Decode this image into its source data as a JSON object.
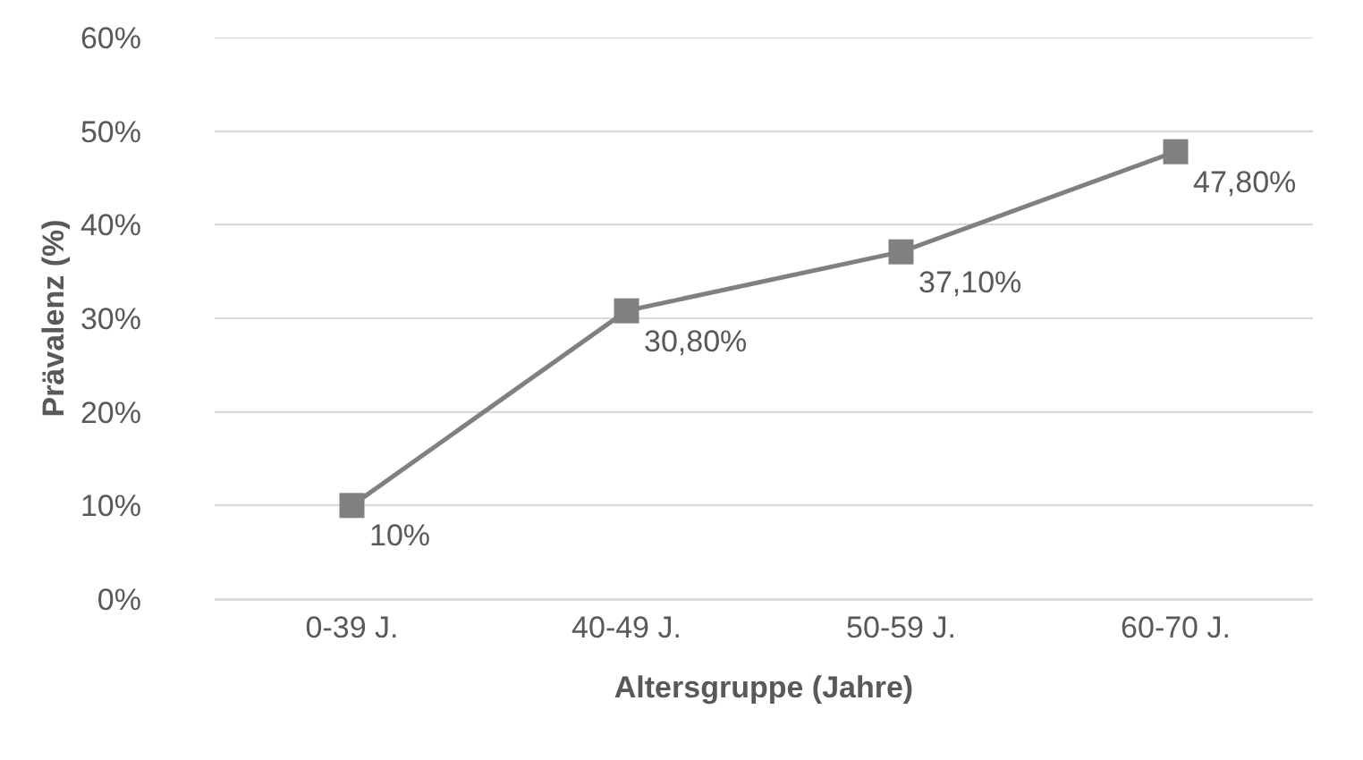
{
  "chart_data": {
    "type": "line",
    "xlabel": "Altersgruppe (Jahre)",
    "ylabel": "Prävalenz (%)",
    "categories": [
      "0-39 J.",
      "40-49 J.",
      "50-59 J.",
      "60-70 J."
    ],
    "series": [
      {
        "color": "#808080",
        "values": [
          10,
          30.8,
          37.1,
          47.8
        ],
        "value_labels": [
          "10%",
          "30,80%",
          "37,10%",
          "47,80%"
        ]
      }
    ],
    "ylim": [
      0,
      60
    ],
    "yticks": [
      {
        "value": 0,
        "label": "0%"
      },
      {
        "value": 10,
        "label": "10%"
      },
      {
        "value": 20,
        "label": "20%"
      },
      {
        "value": 30,
        "label": "30%"
      },
      {
        "value": 40,
        "label": "40%"
      },
      {
        "value": 50,
        "label": "50%"
      },
      {
        "value": 60,
        "label": "60%"
      }
    ],
    "grid": "y",
    "marker": "square",
    "line_style": "solid"
  }
}
